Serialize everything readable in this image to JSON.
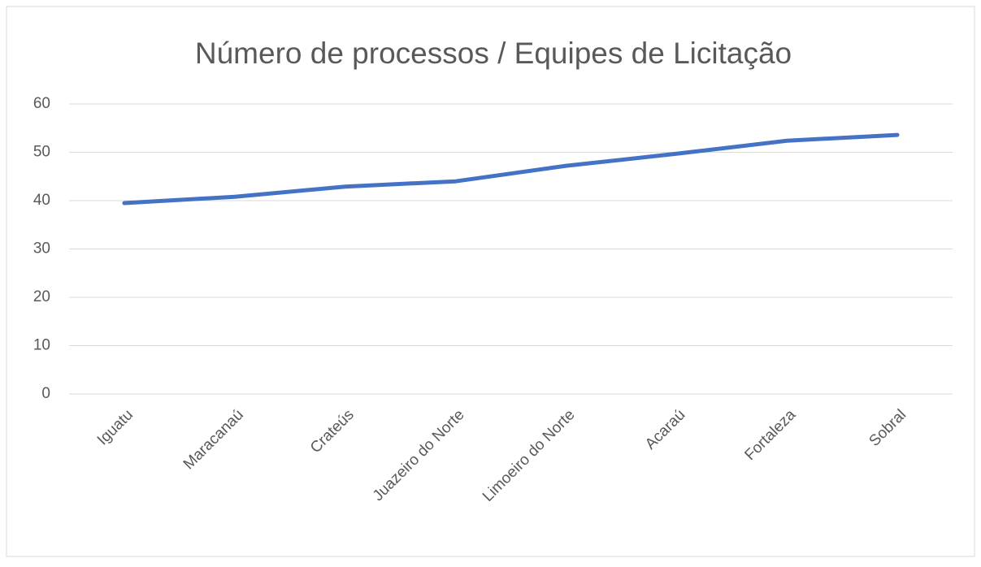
{
  "chart_data": {
    "type": "line",
    "title": "Número de processos / Equipes de Licitação",
    "categories": [
      "Iguatu",
      "Maracanaú",
      "Crateús",
      "Juazeiro do Norte",
      "Limoeiro do Norte",
      "Acaraú",
      "Fortaleza",
      "Sobral"
    ],
    "series": [
      {
        "name": "Número de processos / Equipes de Licitação",
        "color": "#4472c4",
        "values": [
          39.5,
          40.8,
          42.9,
          44,
          47.2,
          49.7,
          52.4,
          53.6
        ]
      }
    ],
    "ylim": [
      0,
      60
    ],
    "yticks": [
      0,
      10,
      20,
      30,
      40,
      50,
      60
    ],
    "grid": true
  }
}
